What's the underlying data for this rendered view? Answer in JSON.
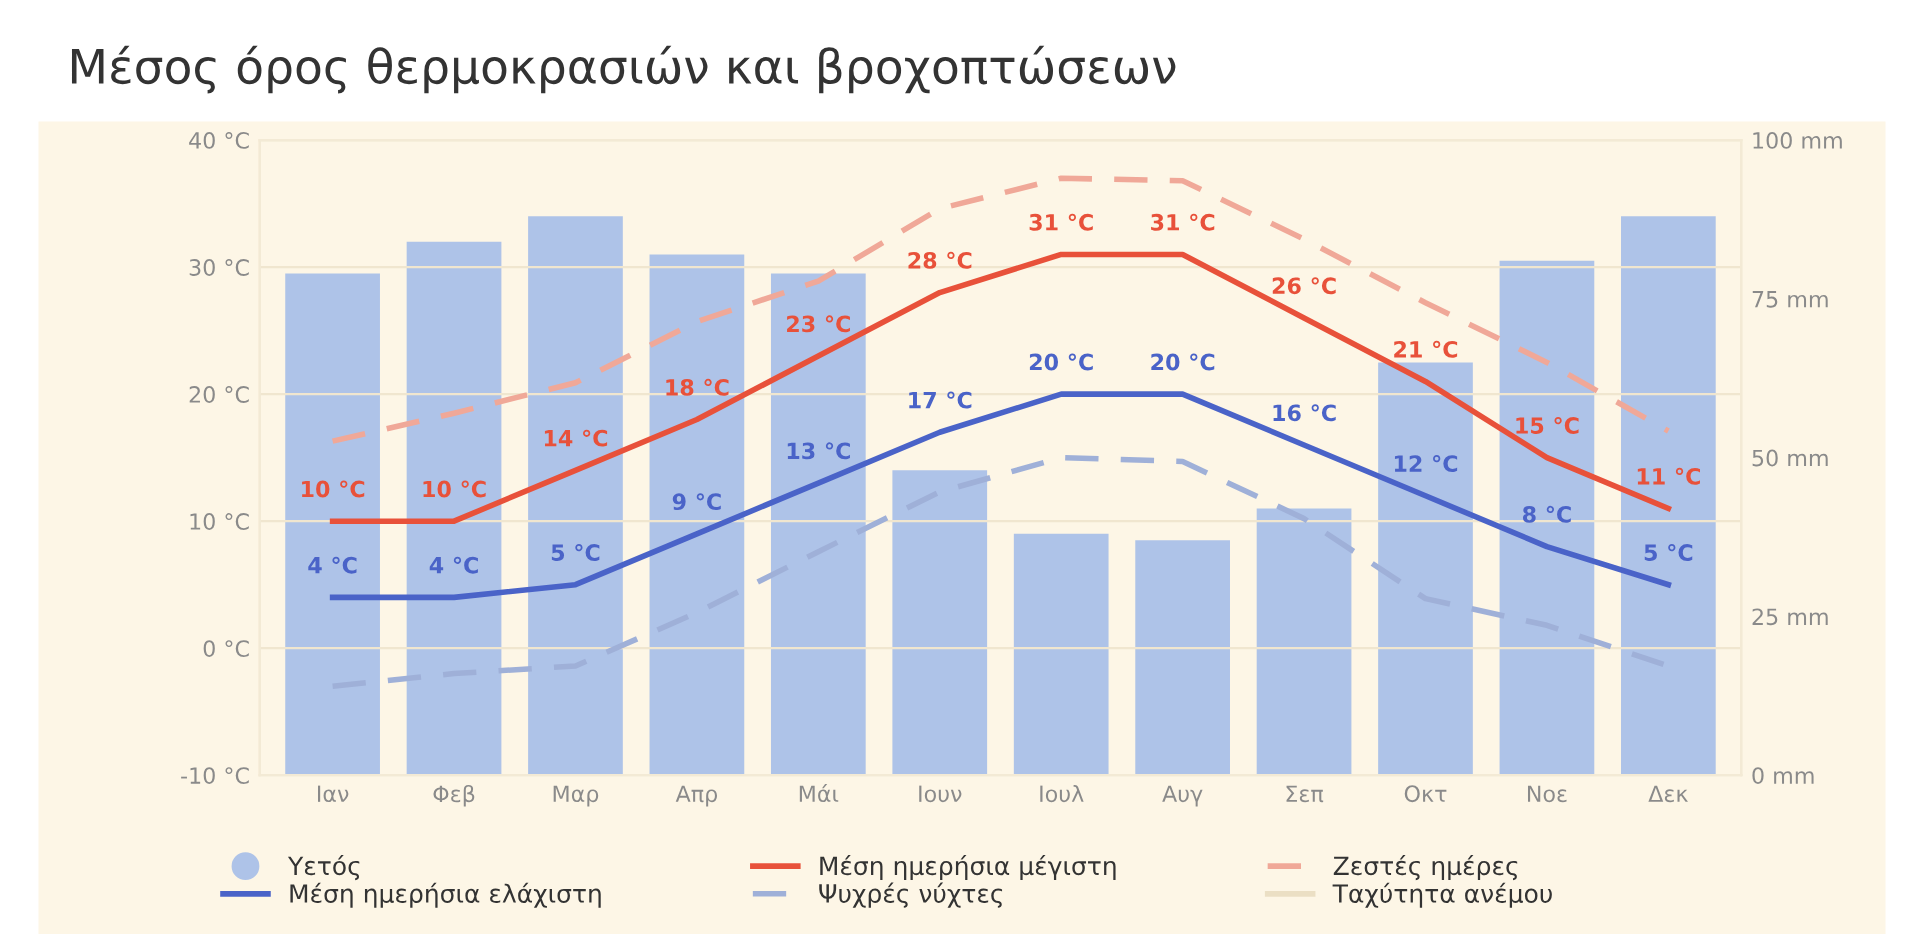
{
  "chart_data": {
    "type": "bar",
    "title": "Μέσος όρος θερμοκρασιών και βροχοπτώσεων",
    "categories": [
      "Ιαν",
      "Φεβ",
      "Μαρ",
      "Απρ",
      "Μάι",
      "Ιουν",
      "Ιουλ",
      "Αυγ",
      "Σεπ",
      "Οκτ",
      "Νοε",
      "Δεκ"
    ],
    "series": [
      {
        "name": "Υετός",
        "axis": "y2",
        "color": "#aec3e8",
        "values": [
          79,
          84,
          88,
          82,
          79,
          48,
          38,
          37,
          42,
          65,
          81,
          88
        ]
      },
      {
        "name": "Μέση ημερήσια ελάχιστη",
        "type": "line",
        "color": "#4a63c8",
        "line_style": "solid",
        "values": [
          4,
          4,
          5,
          9,
          13,
          17,
          20,
          20,
          16,
          12,
          8,
          5
        ],
        "value_labels": [
          "4 °C",
          "4 °C",
          "5 °C",
          "9 °C",
          "13 °C",
          "17 °C",
          "20 °C",
          "20 °C",
          "16 °C",
          "12 °C",
          "8 °C",
          "5 °C"
        ]
      },
      {
        "name": "Μέση ημερήσια μέγιστη",
        "type": "line",
        "color": "#e8513a",
        "line_style": "solid",
        "values": [
          10,
          10,
          14,
          18,
          23,
          28,
          31,
          31,
          26,
          21,
          15,
          11
        ],
        "value_labels": [
          "10 °C",
          "10 °C",
          "14 °C",
          "18 °C",
          "23 °C",
          "28 °C",
          "31 °C",
          "31 °C",
          "26 °C",
          "21 °C",
          "15 °C",
          "11 °C"
        ]
      },
      {
        "name": "Ψυχρές νύχτες",
        "type": "line",
        "color": "#9fb0d8",
        "line_style": "dashed",
        "values": [
          -3,
          -2,
          -1.4,
          2.8,
          7.6,
          12.3,
          15,
          14.7,
          10.2,
          3.9,
          1.8,
          -1.4
        ]
      },
      {
        "name": "Ζεστές ημέρες",
        "type": "line",
        "color": "#f0a898",
        "line_style": "dashed",
        "values": [
          16.3,
          18.5,
          20.9,
          25.7,
          28.9,
          34.6,
          37,
          36.8,
          32.2,
          27.2,
          22.5,
          17.1
        ]
      },
      {
        "name": "Ταχύτητα ανέμου",
        "type": "line",
        "color": "#ebdfc4",
        "line_style": "solid",
        "values": [
          null,
          null,
          null,
          null,
          null,
          null,
          null,
          null,
          null,
          null,
          null,
          null
        ]
      }
    ],
    "ylim": [
      -10,
      40
    ],
    "yticks": [
      {
        "value": -10,
        "label": "-10 °C"
      },
      {
        "value": 0,
        "label": "0 °C"
      },
      {
        "value": 10,
        "label": "10 °C"
      },
      {
        "value": 20,
        "label": "20 °C"
      },
      {
        "value": 30,
        "label": "30 °C"
      },
      {
        "value": 40,
        "label": "40 °C"
      }
    ],
    "y2lim": [
      0,
      100
    ],
    "y2ticks": [
      {
        "value": 0,
        "label": "0 mm"
      },
      {
        "value": 25,
        "label": "25 mm"
      },
      {
        "value": 50,
        "label": "50 mm"
      },
      {
        "value": 75,
        "label": "75 mm"
      },
      {
        "value": 100,
        "label": "100 mm"
      }
    ],
    "grid": "y",
    "legend": "bottom"
  }
}
